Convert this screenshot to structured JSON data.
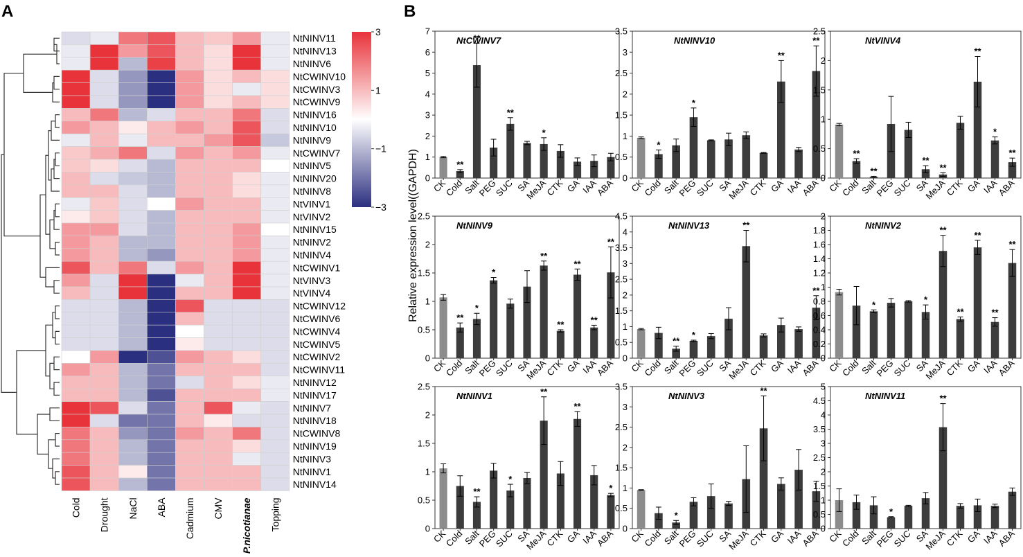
{
  "panel_a": {
    "label": "A",
    "conditions": [
      "Cold",
      "Drought",
      "NaCl",
      "ABA",
      "Cadmium",
      "CMV",
      "P.nicotianae",
      "Topping"
    ],
    "genes": [
      "NtNINV11",
      "NtNINV13",
      "NtNINV6",
      "NtCWINV10",
      "NtCWINV3",
      "NtCWINV9",
      "NtNINV16",
      "NtNINV10",
      "NtNINV9",
      "NtCWINV7",
      "NtNINV5",
      "NtNINV20",
      "NtNINV8",
      "NtVINV1",
      "NtVINV2",
      "NtNINV15",
      "NtNINV2",
      "NtNINV4",
      "NtCWINV1",
      "NtVINV3",
      "NtVINV4",
      "NtCWINV12",
      "NtCWINV6",
      "NtCWINV4",
      "NtCWINV5",
      "NtCWINV2",
      "NtCWINV11",
      "NtNINV12",
      "NtNINV17",
      "NtNINV7",
      "NtNINV18",
      "NtCWINV8",
      "NtNINV19",
      "NtNINV3",
      "NtNINV1",
      "NtNINV14"
    ],
    "colorbar": {
      "ticks": [
        "3",
        "1",
        "−1",
        "−3"
      ],
      "colors": {
        "high": "#e8333a",
        "mid": "#ffffff",
        "low": "#2b2f7f"
      }
    }
  },
  "panel_b": {
    "label": "B",
    "ylabel": "Relative expression level((GAPDH)",
    "colors": {
      "ck_bar": "#8c8c8c",
      "bar": "#3c3c3c"
    }
  },
  "chart_data": [
    {
      "type": "heatmap",
      "title": "",
      "x": [
        "Cold",
        "Drought",
        "NaCl",
        "ABA",
        "Cadmium",
        "CMV",
        "P.nicotianae",
        "Topping"
      ],
      "y": [
        "NtNINV11",
        "NtNINV13",
        "NtNINV6",
        "NtCWINV10",
        "NtCWINV3",
        "NtCWINV9",
        "NtNINV16",
        "NtNINV10",
        "NtNINV9",
        "NtCWINV7",
        "NtNINV5",
        "NtNINV20",
        "NtNINV8",
        "NtVINV1",
        "NtVINV2",
        "NtNINV15",
        "NtNINV2",
        "NtNINV4",
        "NtCWINV1",
        "NtVINV3",
        "NtVINV4",
        "NtCWINV12",
        "NtCWINV6",
        "NtCWINV4",
        "NtCWINV5",
        "NtCWINV2",
        "NtCWINV11",
        "NtNINV12",
        "NtNINV17",
        "NtNINV7",
        "NtNINV18",
        "NtCWINV8",
        "NtNINV19",
        "NtNINV3",
        "NtNINV1",
        "NtNINV14"
      ],
      "values": [
        [
          -0.5,
          -0.3,
          2.0,
          2.5,
          1.0,
          0.8,
          1.5,
          -0.3
        ],
        [
          -0.3,
          3.5,
          1.5,
          2.5,
          1.0,
          0.5,
          3.0,
          -0.3
        ],
        [
          -0.3,
          3.5,
          -1.0,
          2.8,
          1.0,
          0.5,
          3.0,
          -0.3
        ],
        [
          3.5,
          -0.5,
          -1.5,
          -3.0,
          1.5,
          0.5,
          1.0,
          0.5
        ],
        [
          3.5,
          -0.5,
          -1.5,
          -3.0,
          1.5,
          0.5,
          -0.3,
          0.5
        ],
        [
          3.5,
          -0.5,
          -1.5,
          -3.0,
          1.5,
          0.5,
          1.0,
          0.5
        ],
        [
          1.0,
          2.0,
          -1.0,
          -0.5,
          1.0,
          1.0,
          2.0,
          -0.5
        ],
        [
          1.5,
          1.0,
          0.3,
          1.0,
          1.5,
          1.0,
          2.5,
          -0.5
        ],
        [
          -0.3,
          1.0,
          -0.3,
          1.0,
          1.0,
          1.5,
          2.5,
          -0.8
        ],
        [
          0.8,
          1.2,
          2.0,
          -0.5,
          1.5,
          1.0,
          1.5,
          -0.3
        ],
        [
          0.8,
          0.5,
          -0.5,
          -1.0,
          1.0,
          1.0,
          1.0,
          0.0
        ],
        [
          1.0,
          -0.5,
          -0.8,
          -1.0,
          1.0,
          1.0,
          0.5,
          -0.3
        ],
        [
          1.0,
          1.0,
          -0.5,
          -1.0,
          1.0,
          1.0,
          0.5,
          -0.3
        ],
        [
          -0.3,
          0.8,
          -0.5,
          0.0,
          1.5,
          1.0,
          1.0,
          -0.3
        ],
        [
          0.3,
          0.8,
          -0.5,
          -1.0,
          1.0,
          1.0,
          1.0,
          -0.3
        ],
        [
          1.5,
          1.5,
          -0.5,
          -1.0,
          1.0,
          1.0,
          1.5,
          0.0
        ],
        [
          1.5,
          1.0,
          -1.0,
          -1.0,
          1.0,
          1.0,
          1.5,
          -0.3
        ],
        [
          1.5,
          1.0,
          -1.0,
          -1.5,
          1.0,
          1.0,
          1.5,
          -0.3
        ],
        [
          2.5,
          1.0,
          2.0,
          -0.5,
          1.5,
          1.0,
          3.5,
          -0.3
        ],
        [
          1.5,
          -0.5,
          3.0,
          -3.0,
          -0.3,
          1.0,
          3.0,
          -0.3
        ],
        [
          1.0,
          -0.5,
          3.0,
          -3.0,
          1.0,
          1.0,
          3.5,
          -0.3
        ],
        [
          -0.5,
          -0.5,
          -1.0,
          -3.0,
          2.5,
          -0.5,
          -0.5,
          -0.5
        ],
        [
          -0.5,
          -0.5,
          -1.0,
          -3.0,
          1.0,
          -0.5,
          -0.5,
          -0.5
        ],
        [
          -0.5,
          -0.5,
          -1.0,
          -3.0,
          0.0,
          -0.5,
          -0.5,
          -0.5
        ],
        [
          -0.5,
          -0.5,
          -1.0,
          -3.0,
          0.3,
          -0.5,
          -0.5,
          -0.5
        ],
        [
          0.0,
          1.5,
          -3.0,
          -2.5,
          1.5,
          1.0,
          0.5,
          -0.5
        ],
        [
          1.5,
          1.0,
          -1.0,
          -2.0,
          1.0,
          1.0,
          1.0,
          -0.5
        ],
        [
          1.0,
          1.0,
          -1.0,
          -2.0,
          -0.5,
          1.0,
          0.5,
          -0.3
        ],
        [
          1.0,
          1.0,
          -1.0,
          -2.5,
          1.0,
          1.0,
          1.0,
          -0.3
        ],
        [
          3.5,
          2.5,
          -0.5,
          -2.0,
          1.0,
          2.5,
          -0.3,
          -0.5
        ],
        [
          3.0,
          -0.5,
          -2.0,
          -2.0,
          1.0,
          0.3,
          -0.5,
          -0.5
        ],
        [
          2.0,
          1.0,
          -1.5,
          -2.0,
          1.5,
          1.0,
          2.0,
          -0.5
        ],
        [
          2.0,
          1.0,
          -1.0,
          -2.0,
          1.0,
          1.0,
          0.5,
          -0.5
        ],
        [
          2.0,
          1.0,
          -1.0,
          -2.0,
          1.0,
          1.0,
          -0.3,
          -0.5
        ],
        [
          2.5,
          1.0,
          0.3,
          -2.0,
          1.0,
          1.0,
          1.0,
          -0.5
        ],
        [
          2.5,
          1.0,
          -1.0,
          -2.0,
          1.0,
          1.0,
          1.0,
          -0.5
        ]
      ],
      "colorbar_range": [
        -3,
        3
      ]
    },
    {
      "type": "bar",
      "title": "NtCWINV7",
      "categories": [
        "CK",
        "Cold",
        "Salt",
        "PEG",
        "SUC",
        "SA",
        "MeJA",
        "CTK",
        "GA",
        "IAA",
        "ABA"
      ],
      "values": [
        1.0,
        0.33,
        5.38,
        1.45,
        2.58,
        1.67,
        1.62,
        1.29,
        0.78,
        0.82,
        1.0
      ],
      "errors": [
        0.03,
        0.07,
        1.05,
        0.4,
        0.3,
        0.08,
        0.3,
        0.3,
        0.18,
        0.28,
        0.18
      ],
      "significance": [
        "",
        "**",
        "**",
        "",
        "**",
        "",
        "*",
        "",
        "",
        "",
        ""
      ],
      "ylim": [
        0,
        7
      ],
      "yticks": [
        "0",
        "1",
        "2",
        "3",
        "4",
        "5",
        "6",
        "7"
      ]
    },
    {
      "type": "bar",
      "title": "NtNINV10",
      "categories": [
        "CK",
        "Cold",
        "Salt",
        "PEG",
        "SUC",
        "SA",
        "MeJA",
        "CTK",
        "GA",
        "IAA",
        "ABA"
      ],
      "values": [
        0.96,
        0.57,
        0.78,
        1.45,
        0.9,
        0.92,
        1.02,
        0.6,
        2.3,
        0.68,
        2.55
      ],
      "errors": [
        0.02,
        0.1,
        0.15,
        0.22,
        0.01,
        0.15,
        0.08,
        0.01,
        0.5,
        0.05,
        0.6
      ],
      "significance": [
        "",
        "*",
        "",
        "*",
        "",
        "",
        "",
        "",
        "**",
        "",
        "**"
      ],
      "ylim": [
        0,
        3.5
      ],
      "yticks": [
        "0",
        "0.5",
        "1",
        "1.5",
        "2",
        "2.5",
        "3",
        "3.5"
      ]
    },
    {
      "type": "bar",
      "title": "NtVINV4",
      "categories": [
        "CK",
        "Cold",
        "Salt",
        "PEG",
        "SUC",
        "SA",
        "MeJA",
        "CTK",
        "GA",
        "IAA",
        "ABA"
      ],
      "values": [
        0.91,
        0.29,
        0.02,
        0.92,
        0.82,
        0.15,
        0.06,
        0.94,
        1.64,
        0.64,
        0.27
      ],
      "errors": [
        0.02,
        0.04,
        0.01,
        0.47,
        0.13,
        0.06,
        0.03,
        0.11,
        0.43,
        0.06,
        0.07
      ],
      "significance": [
        "",
        "**",
        "**",
        "",
        "",
        "**",
        "**",
        "",
        "**",
        "*",
        "**"
      ],
      "ylim": [
        0,
        2.5
      ],
      "yticks": [
        "0",
        "0.5",
        "1",
        "1.5",
        "2",
        "2.5"
      ]
    },
    {
      "type": "bar",
      "title": "NtNINV9",
      "categories": [
        "CK",
        "Cold",
        "Salt",
        "PEG",
        "SUC",
        "SA",
        "MeJA",
        "CTK",
        "GA",
        "IAA",
        "ABA"
      ],
      "values": [
        1.07,
        0.54,
        0.69,
        1.37,
        0.96,
        1.26,
        1.63,
        0.48,
        1.47,
        0.54,
        1.51
      ],
      "errors": [
        0.05,
        0.08,
        0.1,
        0.05,
        0.08,
        0.28,
        0.08,
        0.02,
        0.1,
        0.04,
        0.45
      ],
      "significance": [
        "",
        "**",
        "*",
        "*",
        "",
        "",
        "**",
        "**",
        "**",
        "**",
        "**"
      ],
      "ylim": [
        0,
        2.5
      ],
      "yticks": [
        "0",
        "0.5",
        "1",
        "1.5",
        "2",
        "2.5"
      ]
    },
    {
      "type": "bar",
      "title": "NtNINV13",
      "categories": [
        "CK",
        "Cold",
        "Salt",
        "PEG",
        "SUC",
        "SA",
        "MeJA",
        "CTK",
        "GA",
        "IAA",
        "ABA"
      ],
      "values": [
        0.92,
        0.8,
        0.3,
        0.55,
        0.7,
        1.25,
        3.55,
        0.72,
        1.05,
        0.92,
        1.6
      ],
      "errors": [
        0.02,
        0.18,
        0.08,
        0.02,
        0.08,
        0.35,
        0.5,
        0.05,
        0.22,
        0.07,
        0.38
      ],
      "significance": [
        "",
        "",
        "**",
        "*",
        "",
        "",
        "**",
        "",
        "",
        "",
        "**"
      ],
      "ylim": [
        0,
        4.5
      ],
      "yticks": [
        "0",
        "0.5",
        "1",
        "1.5",
        "2",
        "2.5",
        "3",
        "3.5",
        "4",
        "4.5"
      ]
    },
    {
      "type": "bar",
      "title": "NtNINV2",
      "categories": [
        "CK",
        "Cold",
        "Salt",
        "PEG",
        "SUC",
        "SA",
        "MeJA",
        "CTK",
        "GA",
        "IAA",
        "ABA"
      ],
      "values": [
        0.93,
        0.74,
        0.66,
        0.78,
        0.8,
        0.65,
        1.51,
        0.55,
        1.56,
        0.51,
        1.34
      ],
      "errors": [
        0.04,
        0.27,
        0.02,
        0.06,
        0.01,
        0.1,
        0.22,
        0.03,
        0.1,
        0.06,
        0.19
      ],
      "significance": [
        "",
        "",
        "*",
        "",
        "",
        "*",
        "**",
        "**",
        "**",
        "**",
        "**"
      ],
      "ylim": [
        0,
        2
      ],
      "yticks": [
        "0",
        "0.2",
        "0.4",
        "0.6",
        "0.8",
        "1",
        "1.2",
        "1.4",
        "1.6",
        "1.8",
        "2"
      ]
    },
    {
      "type": "bar",
      "title": "NtNINV1",
      "categories": [
        "CK",
        "Cold",
        "Salt",
        "PEG",
        "SUC",
        "SA",
        "MeJA",
        "CTK",
        "GA",
        "IAA",
        "ABA"
      ],
      "values": [
        1.06,
        0.75,
        0.47,
        1.02,
        0.67,
        0.89,
        1.9,
        0.97,
        1.93,
        0.94,
        0.59
      ],
      "errors": [
        0.08,
        0.18,
        0.09,
        0.13,
        0.11,
        0.1,
        0.42,
        0.21,
        0.13,
        0.17,
        0.03
      ],
      "significance": [
        "",
        "",
        "**",
        "",
        "*",
        "",
        "**",
        "",
        "**",
        "",
        "*"
      ],
      "ylim": [
        0,
        2.5
      ],
      "yticks": [
        "0",
        "0.5",
        "1",
        "1.5",
        "2",
        "2.5"
      ]
    },
    {
      "type": "bar",
      "title": "NtNINV3",
      "categories": [
        "CK",
        "Cold",
        "Salt",
        "PEG",
        "SUC",
        "SA",
        "MeJA",
        "CTK",
        "GA",
        "IAA",
        "ABA"
      ],
      "values": [
        0.95,
        0.38,
        0.15,
        0.66,
        0.8,
        0.62,
        1.22,
        2.47,
        1.1,
        1.45,
        0.92
      ],
      "errors": [
        0.01,
        0.15,
        0.05,
        0.1,
        0.3,
        0.05,
        0.82,
        0.8,
        0.15,
        0.5,
        0.25
      ],
      "significance": [
        "",
        "",
        "*",
        "",
        "",
        "",
        "",
        "**",
        "",
        "",
        ""
      ],
      "ylim": [
        0,
        3.5
      ],
      "yticks": [
        "0",
        "0.5",
        "1",
        "1.5",
        "2",
        "2.5",
        "3",
        "3.5"
      ]
    },
    {
      "type": "bar",
      "title": "NtNINV11",
      "categories": [
        "CK",
        "Cold",
        "Salt",
        "PEG",
        "SUC",
        "SA",
        "MeJA",
        "CTK",
        "GA",
        "IAA",
        "ABA"
      ],
      "values": [
        1.0,
        0.93,
        0.82,
        0.4,
        0.8,
        1.07,
        3.57,
        0.8,
        0.82,
        0.8,
        1.3
      ],
      "errors": [
        0.4,
        0.25,
        0.3,
        0.02,
        0.02,
        0.2,
        0.83,
        0.08,
        0.22,
        0.06,
        0.13
      ],
      "significance": [
        "",
        "",
        "",
        "*",
        "",
        "",
        "**",
        "",
        "",
        "",
        ""
      ],
      "ylim": [
        0,
        5
      ],
      "yticks": [
        "0",
        "0.5",
        "1",
        "1.5",
        "2",
        "2.5",
        "3",
        "3.5",
        "4",
        "4.5",
        "5"
      ]
    }
  ]
}
